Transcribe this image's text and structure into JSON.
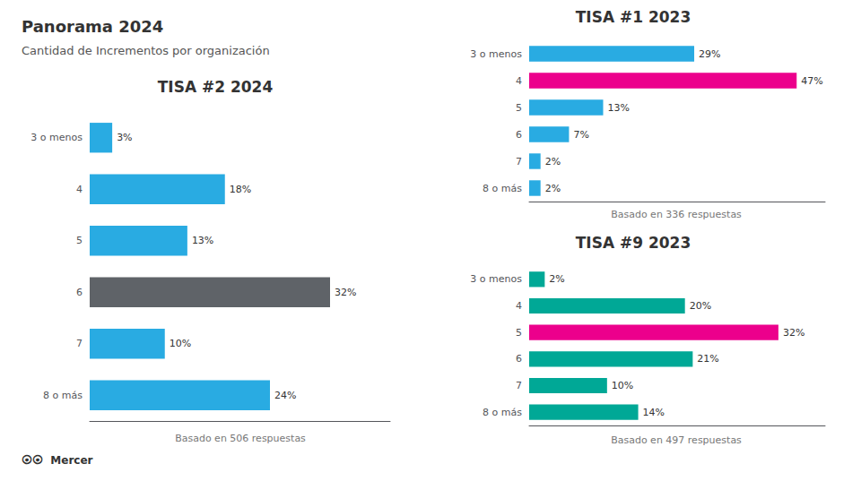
{
  "title": "Panorama 2024",
  "subtitle": "Cantidad de Incrementos por organización",
  "annotations": [
    "⦿⦿  Mercer"
  ],
  "chart_data": [
    {
      "type": "bar",
      "orientation": "horizontal",
      "title": "TISA #2 2024",
      "categories": [
        "3 o menos",
        "4",
        "5",
        "6",
        "7",
        "8 o más"
      ],
      "values": [
        3,
        18,
        13,
        32,
        10,
        24
      ],
      "value_labels": [
        "3%",
        "18%",
        "13%",
        "32%",
        "10%",
        "24%"
      ],
      "colors": [
        "#29ABE2",
        "#29ABE2",
        "#29ABE2",
        "#5F6368",
        "#29ABE2",
        "#29ABE2"
      ],
      "xlim": [
        0,
        40
      ],
      "grid": false,
      "data_labels": true,
      "tick_labels": "y",
      "annotations": [
        "Basado en 506 respuestas"
      ]
    },
    {
      "type": "bar",
      "orientation": "horizontal",
      "title": "TISA #1 2023",
      "categories": [
        "3 o menos",
        "4",
        "5",
        "6",
        "7",
        "8 o más"
      ],
      "values": [
        29,
        47,
        13,
        7,
        2,
        2
      ],
      "value_labels": [
        "29%",
        "47%",
        "13%",
        "7%",
        "2%",
        "2%"
      ],
      "colors": [
        "#29ABE2",
        "#EC008C",
        "#29ABE2",
        "#29ABE2",
        "#29ABE2",
        "#29ABE2"
      ],
      "xlim": [
        0,
        52
      ],
      "grid": false,
      "data_labels": true,
      "tick_labels": "y",
      "annotations": [
        "Basado en 336 respuestas"
      ]
    },
    {
      "type": "bar",
      "orientation": "horizontal",
      "title": "TISA #9 2023",
      "categories": [
        "3 o menos",
        "4",
        "5",
        "6",
        "7",
        "8 o más"
      ],
      "values": [
        2,
        20,
        32,
        21,
        10,
        14
      ],
      "value_labels": [
        "2%",
        "20%",
        "32%",
        "21%",
        "10%",
        "14%"
      ],
      "colors": [
        "#00A896",
        "#00A896",
        "#EC008C",
        "#00A896",
        "#00A896",
        "#00A896"
      ],
      "xlim": [
        0,
        38
      ],
      "grid": false,
      "data_labels": true,
      "tick_labels": "y",
      "annotations": [
        "Basado en 497 respuestas"
      ]
    }
  ]
}
